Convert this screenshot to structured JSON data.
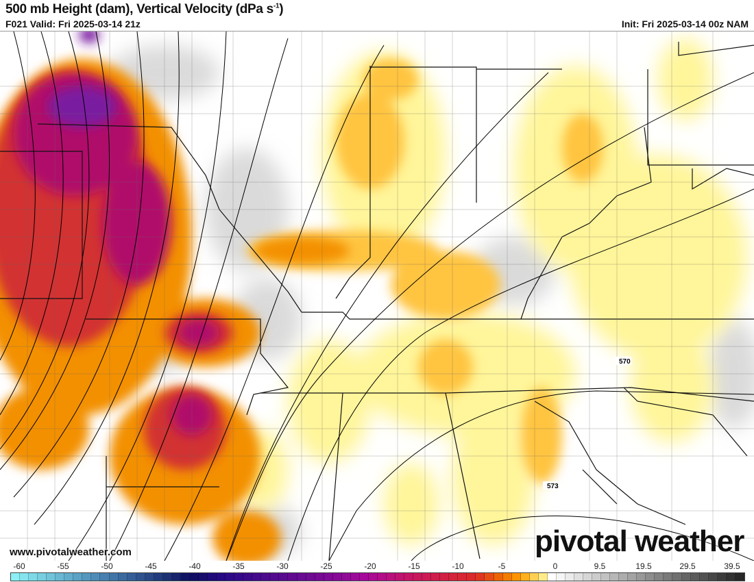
{
  "header": {
    "title": "500 mb Height (dam), Vertical Velocity (dPa s",
    "title_sup": "-1",
    "title_end": ")",
    "valid": "F021 Valid: Fri 2025-03-14 21z",
    "init": "Init: Fri 2025-03-14 00z NAM"
  },
  "map": {
    "contour_labels": [
      "570",
      "573"
    ],
    "watermark_url": "www.pivotalweather.com",
    "logo": "pivotal weather"
  },
  "colorbar": {
    "labels": [
      "-60",
      "-55",
      "-50",
      "-45",
      "-40",
      "-35",
      "-30",
      "-25",
      "-20",
      "-15",
      "-10",
      "-5",
      "0",
      "9.5",
      "19.5",
      "29.5",
      "39.5"
    ],
    "stops": [
      {
        "v": -60,
        "c": "#8ff5f8"
      },
      {
        "v": -50,
        "c": "#4a86b4"
      },
      {
        "v": -42,
        "c": "#1a2a70"
      },
      {
        "v": -40,
        "c": "#0d0d60"
      },
      {
        "v": -36,
        "c": "#2a0a88"
      },
      {
        "v": -25,
        "c": "#7a0a95"
      },
      {
        "v": -20,
        "c": "#aa0a9a"
      },
      {
        "v": -15,
        "c": "#c81560"
      },
      {
        "v": -8,
        "c": "#dc2a28"
      },
      {
        "v": -5,
        "c": "#f07000"
      },
      {
        "v": -3,
        "c": "#ffa000"
      },
      {
        "v": -1,
        "c": "#ffe070"
      },
      {
        "v": 0,
        "c": "#fff8a0"
      }
    ],
    "gray_stops": [
      {
        "v": 0,
        "c": "#ffffff"
      },
      {
        "v": 39.5,
        "c": "#282828"
      }
    ]
  }
}
